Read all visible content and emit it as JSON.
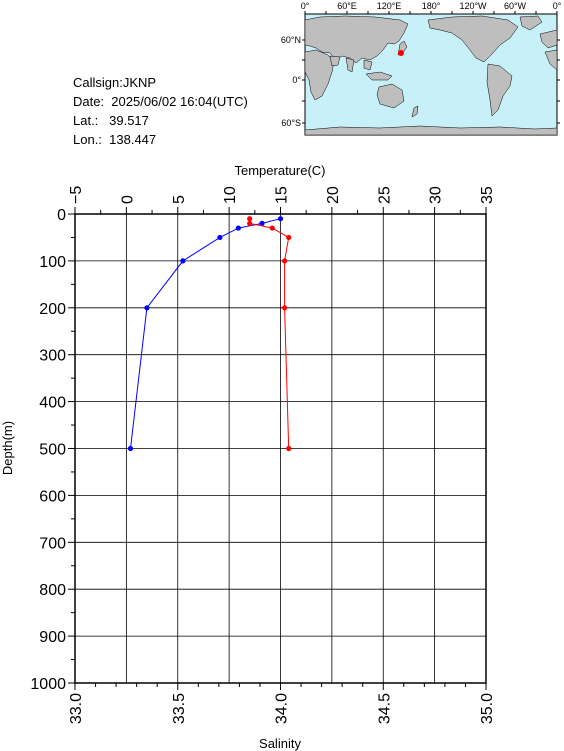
{
  "info": {
    "callsign": "Callsign:JKNP",
    "date": "Date:  2025/06/02 16:04(UTC)",
    "lat": "Lat.:   39.517",
    "lon": "Lon.:  138.447"
  },
  "map": {
    "top_labels": [
      "0°",
      "60°E",
      "120°E",
      "180°",
      "120°W",
      "60°W",
      "0°"
    ],
    "lat_labels": [
      "60°N",
      "0°",
      "60°S"
    ],
    "ocean_color": "#c8f0f8",
    "land_color": "#bebebe",
    "marker_color": "#ff0000"
  },
  "chart_data": {
    "type": "line",
    "title": "",
    "ylabel": "Depth(m)",
    "y_ticks": [
      "0",
      "100",
      "200",
      "300",
      "400",
      "500",
      "600",
      "700",
      "800",
      "900",
      "1000"
    ],
    "ylim": [
      0,
      1000
    ],
    "y_reversed": true,
    "grid": true,
    "top_axis": {
      "label": "Temperature(C)",
      "range": [
        -5,
        35
      ],
      "ticks": [
        "−5",
        "0",
        "5",
        "10",
        "15",
        "20",
        "25",
        "30",
        "35"
      ]
    },
    "bottom_axis": {
      "label": "Salinity",
      "range": [
        33.0,
        35.0
      ],
      "ticks": [
        "33.0",
        "33.5",
        "34.0",
        "34.5",
        "35.0"
      ]
    },
    "series": [
      {
        "axis": "top",
        "color": "#0000ff",
        "points": [
          {
            "x": 15.0,
            "y": 10
          },
          {
            "x": 13.2,
            "y": 20
          },
          {
            "x": 10.9,
            "y": 30
          },
          {
            "x": 9.1,
            "y": 50
          },
          {
            "x": 5.5,
            "y": 100
          },
          {
            "x": 2.0,
            "y": 200
          },
          {
            "x": 0.4,
            "y": 500
          }
        ]
      },
      {
        "axis": "bottom",
        "color": "#ff0000",
        "points": [
          {
            "x": 33.85,
            "y": 10
          },
          {
            "x": 33.85,
            "y": 20
          },
          {
            "x": 33.96,
            "y": 30
          },
          {
            "x": 34.04,
            "y": 50
          },
          {
            "x": 34.02,
            "y": 100
          },
          {
            "x": 34.02,
            "y": 200
          },
          {
            "x": 34.04,
            "y": 500
          }
        ]
      }
    ]
  }
}
